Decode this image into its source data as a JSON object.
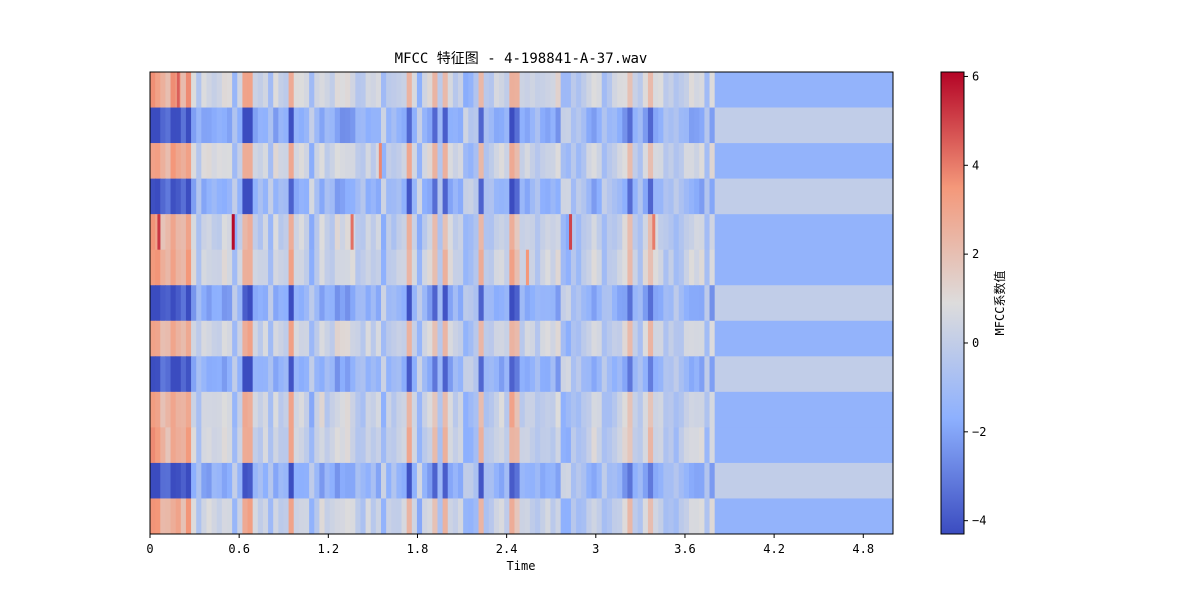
{
  "chart_data": {
    "type": "heatmap",
    "title": "MFCC 特征图 - 4-198841-A-37.wav",
    "xlabel": "Time",
    "ylabel": "",
    "xlim": [
      0,
      5.0
    ],
    "x_ticks": [
      0,
      0.6,
      1.2,
      1.8,
      2.4,
      3,
      3.6,
      4.2,
      4.8
    ],
    "x_tick_labels": [
      "0",
      "0.6",
      "1.2",
      "1.8",
      "2.4",
      "3",
      "3.6",
      "4.2",
      "4.8"
    ],
    "n_coefficients": 13,
    "active_end_time": 3.8,
    "colormap": "coolwarm",
    "colorbar": {
      "label": "MFCC系数值",
      "range": [
        -4.3,
        6.1
      ],
      "ticks": [
        -4,
        -2,
        0,
        2,
        4,
        6
      ],
      "tick_labels": [
        "−4",
        "−2",
        "0",
        "2",
        "4",
        "6"
      ]
    },
    "tail_values": [
      -1.5,
      0,
      -1.5,
      0,
      -1.5,
      -1.5,
      0,
      -1.5,
      0,
      -1.5,
      -1.5,
      0,
      -1.5
    ],
    "row_bias": [
      0.4,
      -1.6,
      0.4,
      -1.4,
      0.1,
      0.3,
      -1.6,
      0.3,
      -1.5,
      0.2,
      0.2,
      -1.5,
      0.2
    ],
    "hot_events": [
      {
        "time": 0.05,
        "row": 4,
        "value": 5.2
      },
      {
        "time": 0.55,
        "row": 4,
        "value": 6.0
      },
      {
        "time": 1.35,
        "row": 4,
        "value": 4.2
      },
      {
        "time": 2.82,
        "row": 4,
        "value": 5.0
      },
      {
        "time": 3.38,
        "row": 4,
        "value": 4.0
      },
      {
        "time": 0.18,
        "row": 0,
        "value": 4.5
      },
      {
        "time": 1.54,
        "row": 2,
        "value": 3.8
      },
      {
        "time": 2.53,
        "row": 5,
        "value": 3.5
      }
    ]
  }
}
